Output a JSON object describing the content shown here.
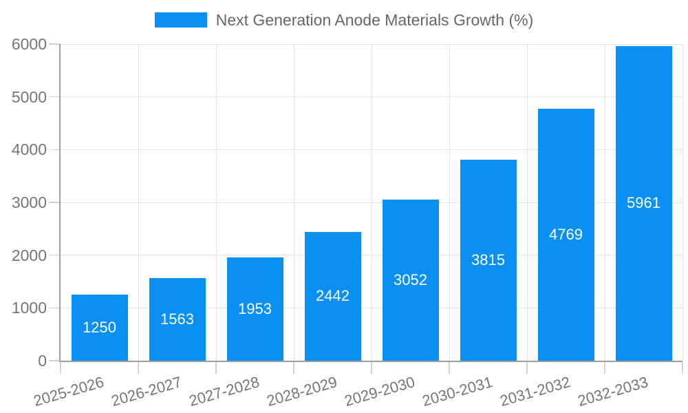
{
  "chart_data": {
    "type": "bar",
    "title": "",
    "legend": {
      "label": "Next Generation Anode Materials Growth (%)",
      "position": "top"
    },
    "categories": [
      "2025-2026",
      "2026-2027",
      "2027-2028",
      "2028-2029",
      "2029-2030",
      "2030-2031",
      "2031-2032",
      "2032-2033"
    ],
    "values": [
      1250,
      1563,
      1953,
      2442,
      3052,
      3815,
      4769,
      5961
    ],
    "xlabel": "",
    "ylabel": "",
    "ylim": [
      0,
      6000
    ],
    "y_ticks": [
      0,
      1000,
      2000,
      3000,
      4000,
      5000,
      6000
    ],
    "grid": true,
    "x_tick_rotation_deg": -16,
    "value_labels_position": "center-inside",
    "colors": {
      "bar": "#0a90f2",
      "legend_text": "#666666",
      "axis_text": "#757575",
      "grid_line": "#e3e3e3",
      "tick_line": "#d2d2d2",
      "axis_line": "#9e9e9e",
      "value_label": "#ffffff",
      "background": "#ffffff"
    }
  }
}
